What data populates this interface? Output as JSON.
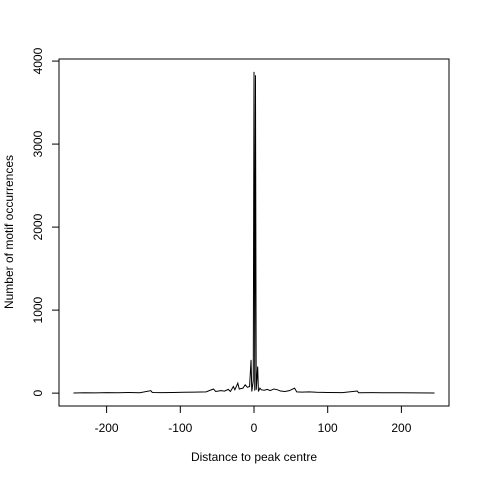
{
  "chart_data": {
    "type": "line",
    "xlabel": "Distance to peak centre",
    "ylabel": "Number of motif occurrences",
    "x": [
      -245,
      -230,
      -215,
      -200,
      -185,
      -170,
      -155,
      -140,
      -138,
      -125,
      -110,
      -95,
      -80,
      -65,
      -55,
      -52,
      -45,
      -40,
      -35,
      -32,
      -28,
      -26,
      -22,
      -20,
      -15,
      -12,
      -9,
      -6,
      -4,
      -3,
      -1,
      0,
      1,
      2,
      3,
      5,
      6,
      8,
      10,
      14,
      18,
      22,
      27,
      32,
      36,
      42,
      48,
      55,
      58,
      65,
      75,
      85,
      100,
      120,
      140,
      142,
      160,
      180,
      200,
      220,
      245
    ],
    "values": [
      2,
      5,
      3,
      6,
      4,
      8,
      5,
      30,
      8,
      6,
      8,
      10,
      12,
      15,
      50,
      20,
      30,
      25,
      45,
      20,
      80,
      40,
      120,
      50,
      60,
      100,
      70,
      80,
      400,
      20,
      150,
      3870,
      30,
      3830,
      40,
      320,
      20,
      60,
      40,
      35,
      45,
      30,
      50,
      40,
      25,
      20,
      30,
      60,
      15,
      12,
      15,
      10,
      8,
      6,
      25,
      5,
      6,
      4,
      5,
      3,
      2
    ],
    "color": "#000000",
    "xlim": [
      -264.6,
      264.6
    ],
    "ylim": [
      -155,
      4025
    ],
    "xticks": [
      -200,
      -100,
      0,
      100,
      200
    ],
    "yticks": [
      0,
      1000,
      2000,
      3000,
      4000
    ]
  }
}
